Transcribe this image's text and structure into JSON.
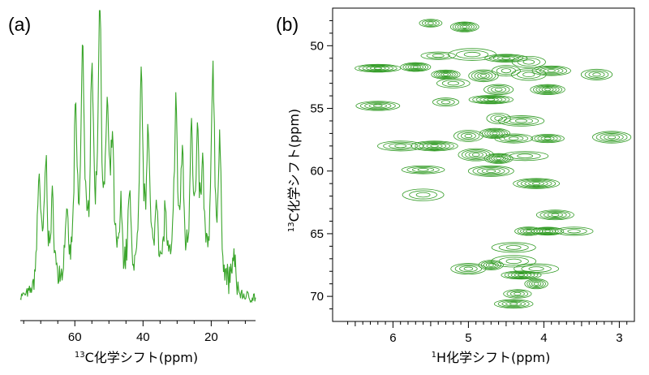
{
  "chart_data": [
    {
      "type": "line",
      "panel": "(a)",
      "xlabel_sup": "13",
      "xlabel": "C化学シフト(ppm)",
      "xlim": [
        76,
        7
      ],
      "x_reversed": true,
      "x_ticks": [
        "60",
        "40",
        "20"
      ],
      "x_tick_values": [
        60,
        40,
        20
      ],
      "color": "#3aa52b",
      "peaks": [
        {
          "ppm": 70.5,
          "height": 0.4
        },
        {
          "ppm": 68.5,
          "height": 0.42
        },
        {
          "ppm": 66.5,
          "height": 0.28
        },
        {
          "ppm": 62.5,
          "height": 0.24
        },
        {
          "ppm": 59.8,
          "height": 0.57
        },
        {
          "ppm": 57.7,
          "height": 0.82
        },
        {
          "ppm": 55.0,
          "height": 0.73
        },
        {
          "ppm": 52.7,
          "height": 1.0
        },
        {
          "ppm": 50.5,
          "height": 0.55
        },
        {
          "ppm": 49.0,
          "height": 0.45
        },
        {
          "ppm": 46.5,
          "height": 0.24
        },
        {
          "ppm": 44.0,
          "height": 0.3
        },
        {
          "ppm": 40.5,
          "height": 0.72
        },
        {
          "ppm": 38.5,
          "height": 0.55
        },
        {
          "ppm": 36.0,
          "height": 0.3
        },
        {
          "ppm": 33.5,
          "height": 0.25
        },
        {
          "ppm": 30.4,
          "height": 0.62
        },
        {
          "ppm": 28.5,
          "height": 0.42
        },
        {
          "ppm": 25.8,
          "height": 0.55
        },
        {
          "ppm": 24.0,
          "height": 0.45
        },
        {
          "ppm": 22.5,
          "height": 0.35
        },
        {
          "ppm": 19.5,
          "height": 0.77
        },
        {
          "ppm": 17.5,
          "height": 0.45
        },
        {
          "ppm": 13.5,
          "height": 0.12
        }
      ]
    },
    {
      "type": "contour",
      "panel": "(b)",
      "xlabel_sup": "1",
      "xlabel": "H化学シフト(ppm)",
      "ylabel_sup": "13",
      "ylabel": "C化学シフト(ppm)",
      "xlim": [
        6.8,
        2.8
      ],
      "ylim": [
        47,
        72
      ],
      "x_reversed": true,
      "y_reversed": true,
      "x_ticks": [
        "6",
        "5",
        "4",
        "3"
      ],
      "x_tick_values": [
        6,
        5,
        4,
        3
      ],
      "y_ticks": [
        "50",
        "55",
        "60",
        "65",
        "70"
      ],
      "y_tick_values": [
        50,
        55,
        60,
        65,
        70
      ],
      "color": "#2f9a22",
      "cross_peaks": [
        {
          "h": 5.5,
          "c": 48.2
        },
        {
          "h": 5.05,
          "c": 48.5
        },
        {
          "h": 5.4,
          "c": 50.8
        },
        {
          "h": 4.95,
          "c": 50.7
        },
        {
          "h": 4.5,
          "c": 51.0
        },
        {
          "h": 4.2,
          "c": 51.3
        },
        {
          "h": 6.2,
          "c": 51.8
        },
        {
          "h": 5.7,
          "c": 51.7
        },
        {
          "h": 5.3,
          "c": 52.3
        },
        {
          "h": 4.8,
          "c": 52.4
        },
        {
          "h": 4.5,
          "c": 52.0
        },
        {
          "h": 4.2,
          "c": 52.3
        },
        {
          "h": 3.9,
          "c": 52.0
        },
        {
          "h": 3.3,
          "c": 52.3
        },
        {
          "h": 5.2,
          "c": 53.0
        },
        {
          "h": 4.6,
          "c": 53.5
        },
        {
          "h": 3.95,
          "c": 53.5
        },
        {
          "h": 6.2,
          "c": 54.8
        },
        {
          "h": 5.3,
          "c": 54.5
        },
        {
          "h": 4.7,
          "c": 54.3
        },
        {
          "h": 4.6,
          "c": 55.8
        },
        {
          "h": 4.3,
          "c": 56.0
        },
        {
          "h": 5.0,
          "c": 57.2
        },
        {
          "h": 4.65,
          "c": 57.0
        },
        {
          "h": 4.4,
          "c": 57.4
        },
        {
          "h": 3.95,
          "c": 57.4
        },
        {
          "h": 3.1,
          "c": 57.3
        },
        {
          "h": 5.9,
          "c": 58.0
        },
        {
          "h": 5.45,
          "c": 58.0
        },
        {
          "h": 4.9,
          "c": 58.7
        },
        {
          "h": 4.6,
          "c": 59.0
        },
        {
          "h": 4.25,
          "c": 58.8
        },
        {
          "h": 5.6,
          "c": 59.9
        },
        {
          "h": 4.7,
          "c": 60.0
        },
        {
          "h": 4.1,
          "c": 61.0
        },
        {
          "h": 5.6,
          "c": 61.9
        },
        {
          "h": 3.85,
          "c": 63.5
        },
        {
          "h": 4.2,
          "c": 64.8
        },
        {
          "h": 3.95,
          "c": 64.8
        },
        {
          "h": 3.6,
          "c": 64.8
        },
        {
          "h": 4.4,
          "c": 66.1
        },
        {
          "h": 4.4,
          "c": 67.2
        },
        {
          "h": 4.7,
          "c": 67.5
        },
        {
          "h": 4.1,
          "c": 67.8
        },
        {
          "h": 4.3,
          "c": 68.3
        },
        {
          "h": 4.1,
          "c": 69.0
        },
        {
          "h": 4.35,
          "c": 69.8
        },
        {
          "h": 4.4,
          "c": 70.6
        },
        {
          "h": 5.0,
          "c": 67.8
        }
      ]
    }
  ]
}
